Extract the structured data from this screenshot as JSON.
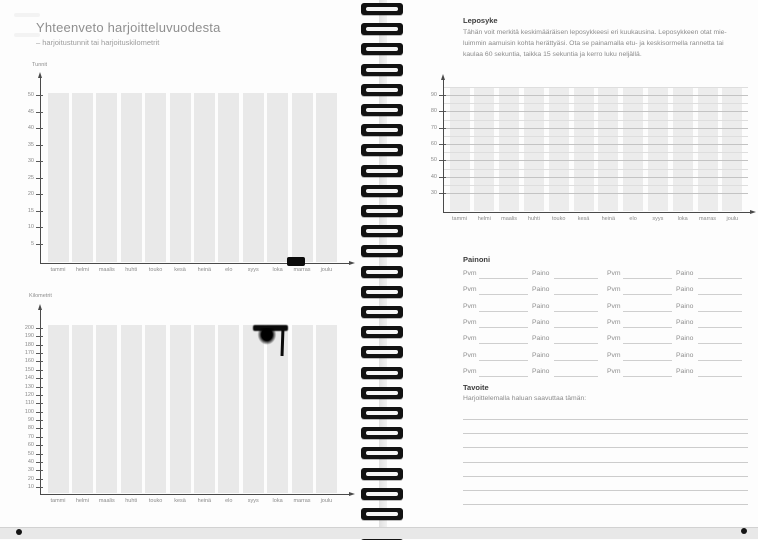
{
  "months": [
    "tammi",
    "helmi",
    "maalis",
    "huhti",
    "touko",
    "kesä",
    "heinä",
    "elo",
    "syys",
    "loka",
    "marras",
    "joulu"
  ],
  "left_page": {
    "title": "Yhteenveto harjoitteluvuodesta",
    "subtitle": "– harjoitustunnit tai harjoituskilometrit",
    "hours_chart": {
      "axis_label": "Tunnit",
      "yticks": [
        50,
        45,
        40,
        35,
        30,
        25,
        20,
        15,
        10,
        5
      ]
    },
    "km_chart": {
      "axis_label": "Kilometrit",
      "yticks": [
        200,
        190,
        180,
        170,
        160,
        150,
        140,
        130,
        120,
        110,
        100,
        90,
        80,
        70,
        60,
        50,
        40,
        30,
        20,
        10
      ]
    }
  },
  "right_page": {
    "leposyke_heading": "Leposyke",
    "leposyke_body_lines": [
      "Tähän voit merkitä keskimääräisen leposykkeesi eri kuukausina. Leposykkeen otat mie-",
      "luimmin aamuisin kohta herättyäsi. Ota se painamalla etu- ja keskisormella rannetta tai",
      "kaulaa 60 sekuntia, taikka 15 sekuntia ja kerro luku neljällä."
    ],
    "pulse_chart": {
      "yticks": [
        90,
        80,
        70,
        60,
        50,
        40,
        30
      ]
    },
    "painoni": {
      "heading": "Painoni",
      "date_label": "Pvm",
      "weight_label": "Paino",
      "row_count": 7,
      "column_groups": 2
    },
    "tavoite": {
      "heading": "Tavoite",
      "prompt": "Harjoittelemalla haluan saavuttaa tämän:",
      "line_count": 7
    }
  },
  "artifacts": {
    "ink_smudges": [
      "spine-blob-left-center",
      "loka-column-top-km-chart",
      "marras-label-hours-chart"
    ]
  },
  "colors": {
    "bar_fill": "#e9e9e9",
    "column_fill": "#ececec",
    "axis": "#4a4a4a",
    "grid_major": "#c3c3c3",
    "grid_minor": "#dedede",
    "rule_line": "#cccccc",
    "ink": "#0b0b0b",
    "desk_strip": "#e8e8e8"
  },
  "chart_data": [
    {
      "type": "bar",
      "title": "Tunnit",
      "categories": [
        "tammi",
        "helmi",
        "maalis",
        "huhti",
        "touko",
        "kesä",
        "heinä",
        "elo",
        "syys",
        "loka",
        "marras",
        "joulu"
      ],
      "values": [
        50,
        50,
        50,
        50,
        50,
        50,
        50,
        50,
        50,
        50,
        50,
        50
      ],
      "ylabel": "Tunnit",
      "xlabel": "",
      "ylim": [
        0,
        50
      ],
      "ytick_step": 5,
      "grid": false,
      "legend": false,
      "note": "Blank diary fill-in template: twelve identical full-height light-gray guide columns, no recorded data"
    },
    {
      "type": "bar",
      "title": "Kilometrit",
      "categories": [
        "tammi",
        "helmi",
        "maalis",
        "huhti",
        "touko",
        "kesä",
        "heinä",
        "elo",
        "syys",
        "loka",
        "marras",
        "joulu"
      ],
      "values": [
        200,
        200,
        200,
        200,
        200,
        200,
        200,
        200,
        200,
        200,
        200,
        200
      ],
      "ylabel": "Kilometrit",
      "xlabel": "",
      "ylim": [
        0,
        200
      ],
      "ytick_step": 10,
      "grid": false,
      "legend": false,
      "note": "Blank diary fill-in template: twelve identical full-height light-gray guide columns; ink smudge over the loka column top and over the marras label of the hours chart"
    },
    {
      "type": "bar",
      "title": "Leposyke",
      "categories": [
        "tammi",
        "helmi",
        "maalis",
        "huhti",
        "touko",
        "kesä",
        "heinä",
        "elo",
        "syys",
        "loka",
        "marras",
        "joulu"
      ],
      "values": [
        94,
        94,
        94,
        94,
        94,
        94,
        94,
        94,
        94,
        94,
        94,
        94
      ],
      "ylabel": "",
      "xlabel": "",
      "ylim": [
        25,
        95
      ],
      "yticks": [
        30,
        40,
        50,
        60,
        70,
        80,
        90
      ],
      "grid": true,
      "legend": false,
      "note": "Blank resting-heart-rate grid: light-gray month columns crossed by horizontal gridlines every 5 bpm (major every 10 bpm)"
    }
  ]
}
